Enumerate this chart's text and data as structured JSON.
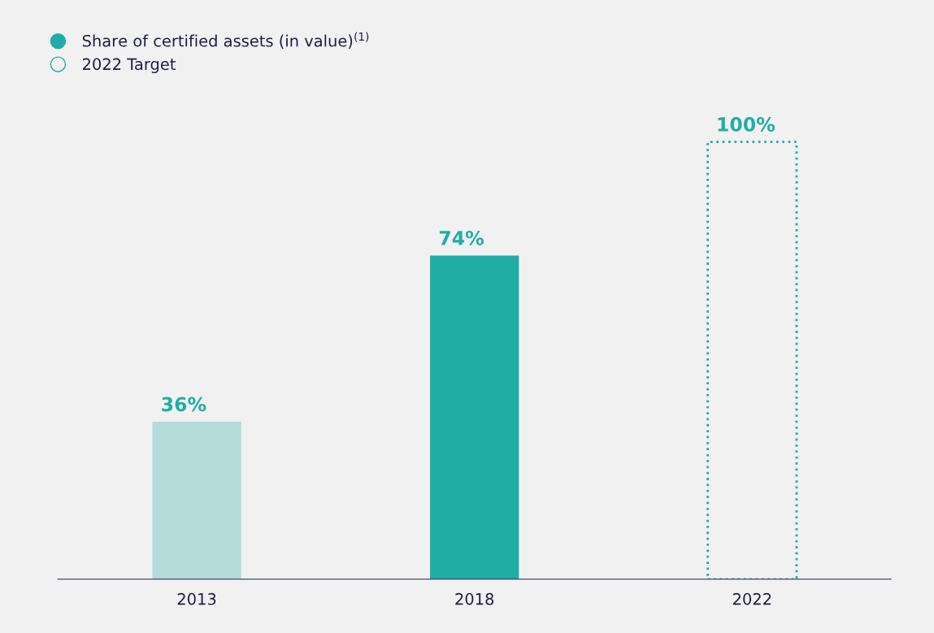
{
  "chart_data": {
    "type": "bar",
    "categories": [
      "2013",
      "2018",
      "2022"
    ],
    "series": [
      {
        "name": "Share of certified assets (in value)$^{(1)}$",
        "color": "#20ada5",
        "colors": [
          "#b3dcda",
          "#20ada5",
          "#20ada5"
        ],
        "values": [
          36,
          74,
          null
        ],
        "value_labels": [
          "36%",
          "74%",
          null
        ]
      },
      {
        "name": "2022 Target",
        "color": "#20ada5",
        "line_style": "dotted",
        "values": [
          null,
          null,
          100
        ],
        "value_labels": [
          null,
          null,
          "100%"
        ]
      }
    ],
    "legend": "top left",
    "marker": "circle",
    "grid": false
  }
}
